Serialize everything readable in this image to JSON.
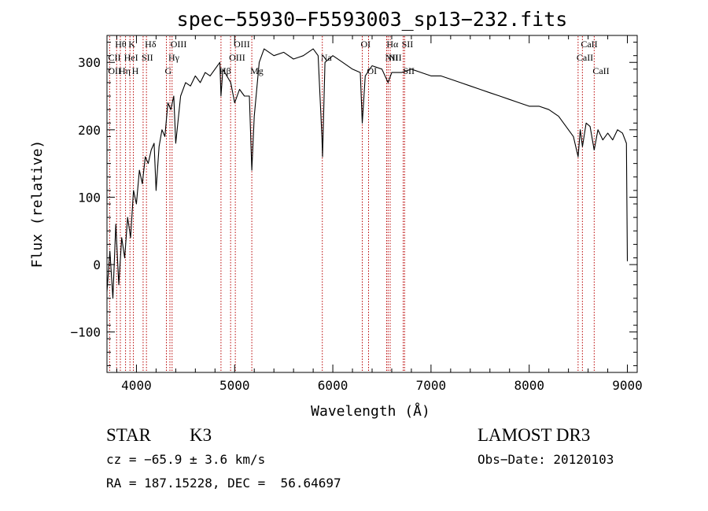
{
  "chart_data": {
    "type": "line",
    "title": "spec−55930−F5593003_sp13−232.fits",
    "xlabel": "Wavelength (Å)",
    "ylabel": "Flux (relative)",
    "xlim": [
      3700,
      9100
    ],
    "ylim": [
      -160,
      340
    ],
    "x_ticks": [
      4000,
      5000,
      6000,
      7000,
      8000,
      9000
    ],
    "x_tick_labels": [
      "4000",
      "5000",
      "6000",
      "7000",
      "8000",
      "9000"
    ],
    "y_ticks": [
      -100,
      0,
      100,
      200,
      300
    ],
    "y_tick_labels": [
      "−100",
      "0",
      "100",
      "200",
      "300"
    ],
    "grid": false,
    "series": [
      {
        "x": [
          3700,
          3730,
          3760,
          3790,
          3820,
          3850,
          3880,
          3910,
          3940,
          3970,
          4000,
          4030,
          4060,
          4090,
          4120,
          4150,
          4180,
          4200,
          4230,
          4260,
          4290,
          4320,
          4350,
          4380,
          4400,
          4450,
          4500,
          4550,
          4600,
          4650,
          4700,
          4750,
          4800,
          4850,
          4861,
          4880,
          4920,
          4960,
          5000,
          5050,
          5100,
          5150,
          5175,
          5200,
          5250,
          5300,
          5400,
          5500,
          5600,
          5700,
          5800,
          5850,
          5889,
          5895,
          5920,
          6000,
          6100,
          6200,
          6280,
          6300,
          6330,
          6400,
          6500,
          6563,
          6600,
          6700,
          6800,
          6900,
          7000,
          7100,
          7200,
          7300,
          7400,
          7500,
          7600,
          7700,
          7800,
          7900,
          8000,
          8100,
          8200,
          8300,
          8400,
          8450,
          8498,
          8520,
          8542,
          8580,
          8620,
          8662,
          8700,
          8750,
          8800,
          8850,
          8900,
          8950,
          8990,
          9000
        ],
        "y": [
          -40,
          20,
          -50,
          60,
          -30,
          40,
          10,
          70,
          40,
          110,
          90,
          140,
          120,
          160,
          150,
          170,
          180,
          110,
          175,
          200,
          190,
          240,
          230,
          250,
          180,
          250,
          270,
          265,
          280,
          270,
          285,
          280,
          290,
          300,
          250,
          290,
          280,
          270,
          240,
          260,
          250,
          250,
          140,
          220,
          300,
          320,
          310,
          315,
          305,
          310,
          320,
          310,
          190,
          160,
          300,
          310,
          300,
          290,
          285,
          210,
          280,
          295,
          290,
          270,
          285,
          285,
          290,
          285,
          280,
          280,
          275,
          270,
          265,
          260,
          255,
          250,
          245,
          240,
          235,
          235,
          230,
          220,
          200,
          190,
          160,
          200,
          175,
          210,
          205,
          170,
          200,
          185,
          195,
          185,
          200,
          195,
          180,
          5
        ]
      }
    ],
    "annotations": [
      {
        "label": "Hθ",
        "x": 3798
      },
      {
        "label": "K",
        "x": 3934
      },
      {
        "label": "Hδ",
        "x": 4102
      },
      {
        "label": "OIII",
        "x": 4363
      },
      {
        "label": "OIII",
        "x": 5007
      },
      {
        "label": "OI",
        "x": 6300
      },
      {
        "label": "Hα",
        "x": 6563
      },
      {
        "label": "SII",
        "x": 6717
      },
      {
        "label": "CaII",
        "x": 8542
      },
      {
        "label": "CII",
        "x": 3728
      },
      {
        "label": "HeI",
        "x": 3889
      },
      {
        "label": "SII",
        "x": 4068
      },
      {
        "label": "Hγ",
        "x": 4341
      },
      {
        "label": "OIII",
        "x": 4959
      },
      {
        "label": "Na",
        "x": 5893
      },
      {
        "label": "NII",
        "x": 6548
      },
      {
        "label": "NII",
        "x": 6584
      },
      {
        "label": "CaII",
        "x": 8498
      },
      {
        "label": "OII",
        "x": 3727
      },
      {
        "label": "Hη",
        "x": 3836
      },
      {
        "label": "H",
        "x": 3969
      },
      {
        "label": "G",
        "x": 4305
      },
      {
        "label": "Hβ",
        "x": 4861
      },
      {
        "label": "Mg",
        "x": 5175
      },
      {
        "label": "OI",
        "x": 6364
      },
      {
        "label": "SII",
        "x": 6731
      },
      {
        "label": "CaII",
        "x": 8662
      }
    ],
    "marker_lines": [
      3727,
      3798,
      3836,
      3889,
      3934,
      3969,
      4068,
      4102,
      4305,
      4341,
      4363,
      4861,
      4959,
      5007,
      5175,
      5893,
      6300,
      6364,
      6548,
      6563,
      6584,
      6717,
      6731,
      8498,
      8542,
      8662
    ],
    "colors": {
      "line": "#000000",
      "marker_line": "#b80000",
      "background": "#ffffff"
    }
  },
  "info": {
    "class_label": "STAR",
    "subclass": "K3",
    "survey": "LAMOST DR3",
    "velocity": "cz = −65.9 ± 3.6 km/s",
    "obs_date": "Obs−Date: 20120103",
    "coords": "RA = 187.15228, DEC =  56.64697"
  }
}
